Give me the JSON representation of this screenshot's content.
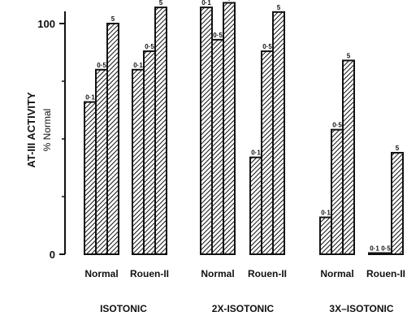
{
  "chart_data": {
    "type": "bar",
    "ylabel": "AT-III ACTIVITY",
    "ylabel_sub": "% Normal",
    "ylim": [
      0,
      108
    ],
    "yticks": [
      {
        "value": 0,
        "label": "0"
      },
      {
        "value": 100,
        "label": "100"
      }
    ],
    "grid": false,
    "legend": "none",
    "series_labels": [
      "0·1",
      "0·5",
      "5"
    ],
    "groups": [
      {
        "name": "ISOTONIC",
        "categories": [
          {
            "name": "Normal",
            "values": [
              66,
              80,
              100
            ]
          },
          {
            "name": "Rouen-II",
            "values": [
              80,
              88,
              107
            ]
          }
        ]
      },
      {
        "name": "2X-ISOTONIC",
        "categories": [
          {
            "name": "Normal",
            "values": [
              107,
              93,
              109
            ]
          },
          {
            "name": "Rouen-II",
            "values": [
              42,
              88,
              105
            ]
          }
        ]
      },
      {
        "name": "3X–ISOTONIC",
        "categories": [
          {
            "name": "Normal",
            "values": [
              16,
              54,
              84
            ]
          },
          {
            "name": "Rouen-II",
            "values": [
              0.5,
              0.5,
              44
            ]
          }
        ]
      }
    ],
    "colors": {
      "bar_stroke": "#111111",
      "hatch": "#111111",
      "background": "#ffffff"
    }
  }
}
